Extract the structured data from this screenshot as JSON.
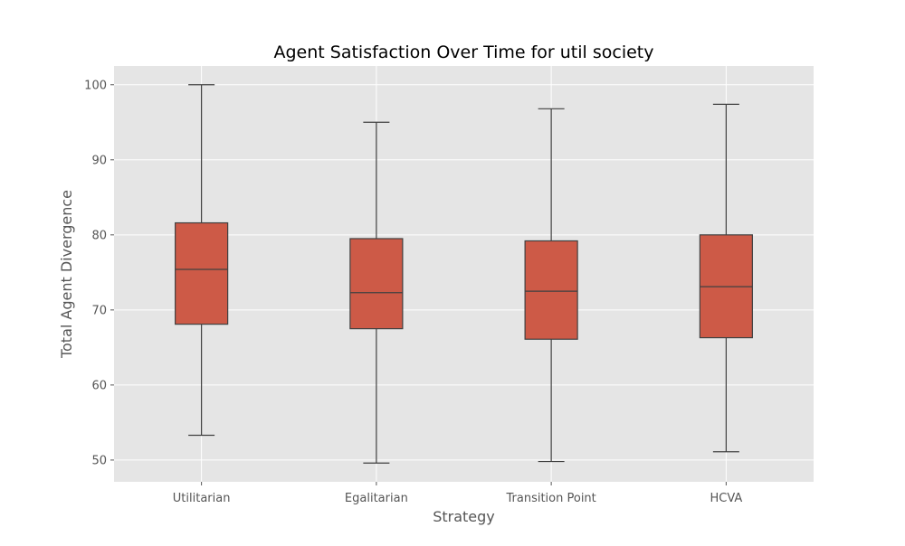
{
  "chart_data": {
    "type": "box",
    "title": "Agent Satisfaction Over Time for util society",
    "xlabel": "Strategy",
    "ylabel": "Total Agent Divergence",
    "categories": [
      "Utilitarian",
      "Egalitarian",
      "Transition Point",
      "HCVA"
    ],
    "boxes": [
      {
        "whisker_low": 53.3,
        "q1": 68.1,
        "median": 75.4,
        "q3": 81.6,
        "whisker_high": 100.0
      },
      {
        "whisker_low": 49.6,
        "q1": 67.5,
        "median": 72.3,
        "q3": 79.5,
        "whisker_high": 95.0
      },
      {
        "whisker_low": 49.8,
        "q1": 66.1,
        "median": 72.5,
        "q3": 79.2,
        "whisker_high": 96.8
      },
      {
        "whisker_low": 51.1,
        "q1": 66.3,
        "median": 73.1,
        "q3": 80.0,
        "whisker_high": 97.4
      }
    ],
    "yticks": [
      50,
      60,
      70,
      80,
      90,
      100
    ],
    "ylim": [
      47.1,
      102.5
    ],
    "grid": true,
    "colors": {
      "box_fill": "#cd5a47",
      "box_edge": "#404040",
      "axes_bg": "#e5e5e5",
      "grid": "#ffffff"
    }
  }
}
